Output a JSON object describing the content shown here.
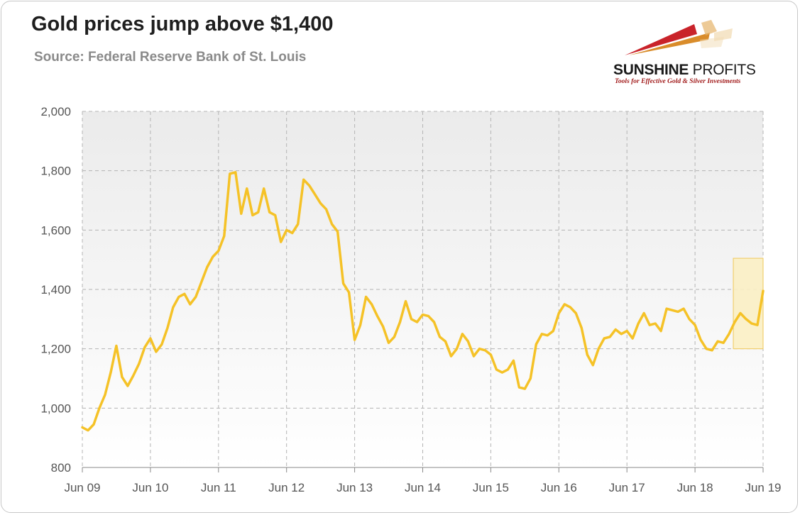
{
  "header": {
    "title": "Gold prices jump above $1,400",
    "subtitle": "Source: Federal Reserve Bank of St. Louis"
  },
  "logo": {
    "name_bold": "SUNSHINE",
    "name_thin": "PROFITS",
    "tagline": "Tools for Effective Gold & Silver Investments"
  },
  "colors": {
    "line": "#F5C227",
    "highlight_fill": "#FBEFC4",
    "highlight_stroke": "#EFC85A",
    "plot_bg_top": "#EBEBEB",
    "plot_bg_bottom": "#FFFFFF",
    "grid": "#B4B4B4"
  },
  "chart_data": {
    "type": "line",
    "title": "Gold prices jump above $1,400",
    "subtitle": "Source: Federal Reserve Bank of St. Louis",
    "xlabel": "",
    "ylabel": "",
    "ylim": [
      800,
      2000
    ],
    "yticks": [
      800,
      1000,
      1200,
      1400,
      1600,
      1800,
      2000
    ],
    "ytick_labels": [
      "800",
      "1,000",
      "1,200",
      "1,400",
      "1,600",
      "1,800",
      "2,000"
    ],
    "xticks": [
      "2009-06",
      "2010-06",
      "2011-06",
      "2012-06",
      "2013-06",
      "2014-06",
      "2015-06",
      "2016-06",
      "2017-06",
      "2018-06",
      "2019-06"
    ],
    "xtick_labels": [
      "Jun 09",
      "Jun 10",
      "Jun 11",
      "Jun 12",
      "Jun 13",
      "Jun 14",
      "Jun 15",
      "Jun 16",
      "Jun 17",
      "Jun 18",
      "Jun 19"
    ],
    "grid": true,
    "legend": "none",
    "highlight_box": {
      "x_start": "2019-01",
      "x_end": "2019-06",
      "y_start": 1200,
      "y_end": 1505
    },
    "series": [
      {
        "x": [
          "2009-06",
          "2009-07",
          "2009-08",
          "2009-09",
          "2009-10",
          "2009-11",
          "2009-12",
          "2010-01",
          "2010-02",
          "2010-03",
          "2010-04",
          "2010-05",
          "2010-06",
          "2010-07",
          "2010-08",
          "2010-09",
          "2010-10",
          "2010-11",
          "2010-12",
          "2011-01",
          "2011-02",
          "2011-03",
          "2011-04",
          "2011-05",
          "2011-06",
          "2011-07",
          "2011-08",
          "2011-09",
          "2011-10",
          "2011-11",
          "2011-12",
          "2012-01",
          "2012-02",
          "2012-03",
          "2012-04",
          "2012-05",
          "2012-06",
          "2012-07",
          "2012-08",
          "2012-09",
          "2012-10",
          "2012-11",
          "2012-12",
          "2013-01",
          "2013-02",
          "2013-03",
          "2013-04",
          "2013-05",
          "2013-06",
          "2013-07",
          "2013-08",
          "2013-09",
          "2013-10",
          "2013-11",
          "2013-12",
          "2014-01",
          "2014-02",
          "2014-03",
          "2014-04",
          "2014-05",
          "2014-06",
          "2014-07",
          "2014-08",
          "2014-09",
          "2014-10",
          "2014-11",
          "2014-12",
          "2015-01",
          "2015-02",
          "2015-03",
          "2015-04",
          "2015-05",
          "2015-06",
          "2015-07",
          "2015-08",
          "2015-09",
          "2015-10",
          "2015-11",
          "2015-12",
          "2016-01",
          "2016-02",
          "2016-03",
          "2016-04",
          "2016-05",
          "2016-06",
          "2016-07",
          "2016-08",
          "2016-09",
          "2016-10",
          "2016-11",
          "2016-12",
          "2017-01",
          "2017-02",
          "2017-03",
          "2017-04",
          "2017-05",
          "2017-06",
          "2017-07",
          "2017-08",
          "2017-09",
          "2017-10",
          "2017-11",
          "2017-12",
          "2018-01",
          "2018-02",
          "2018-03",
          "2018-04",
          "2018-05",
          "2018-06",
          "2018-07",
          "2018-08",
          "2018-09",
          "2018-10",
          "2018-11",
          "2018-12",
          "2019-01",
          "2019-02",
          "2019-03",
          "2019-04",
          "2019-05",
          "2019-06"
        ],
        "values": [
          935,
          925,
          945,
          1000,
          1045,
          1120,
          1210,
          1105,
          1075,
          1110,
          1150,
          1205,
          1235,
          1190,
          1215,
          1270,
          1340,
          1375,
          1385,
          1350,
          1375,
          1425,
          1475,
          1510,
          1530,
          1580,
          1790,
          1795,
          1655,
          1740,
          1650,
          1660,
          1740,
          1660,
          1650,
          1560,
          1600,
          1590,
          1620,
          1770,
          1750,
          1720,
          1690,
          1670,
          1620,
          1595,
          1420,
          1390,
          1230,
          1280,
          1375,
          1350,
          1310,
          1275,
          1220,
          1240,
          1290,
          1360,
          1300,
          1290,
          1315,
          1310,
          1290,
          1240,
          1225,
          1175,
          1200,
          1250,
          1225,
          1175,
          1200,
          1195,
          1180,
          1130,
          1120,
          1130,
          1160,
          1070,
          1065,
          1100,
          1215,
          1250,
          1245,
          1260,
          1320,
          1350,
          1340,
          1320,
          1270,
          1180,
          1145,
          1200,
          1235,
          1240,
          1265,
          1250,
          1260,
          1235,
          1285,
          1320,
          1280,
          1285,
          1260,
          1335,
          1330,
          1325,
          1335,
          1300,
          1280,
          1230,
          1200,
          1195,
          1225,
          1220,
          1250,
          1290,
          1320,
          1300,
          1285,
          1280,
          1395
        ]
      }
    ]
  }
}
